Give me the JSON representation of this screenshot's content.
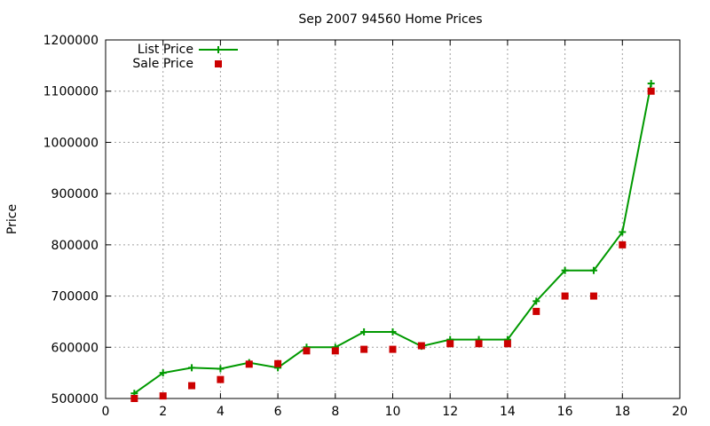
{
  "chart_data": {
    "type": "line",
    "title": "Sep 2007 94560 Home Prices",
    "xlabel": "",
    "ylabel": "Price",
    "xlim": [
      0,
      20
    ],
    "ylim": [
      500000,
      1200000
    ],
    "xticks": [
      0,
      2,
      4,
      6,
      8,
      10,
      12,
      14,
      16,
      18,
      20
    ],
    "yticks": [
      500000,
      600000,
      700000,
      800000,
      900000,
      1000000,
      1100000,
      1200000
    ],
    "grid": true,
    "legend_position": "top-left",
    "series": [
      {
        "name": "List Price",
        "style": "line-with-plus-markers",
        "color": "#009900",
        "x": [
          1,
          2,
          3,
          4,
          5,
          6,
          7,
          8,
          9,
          10,
          11,
          12,
          13,
          14,
          15,
          16,
          17,
          18,
          19
        ],
        "values": [
          510000,
          550000,
          560000,
          558000,
          570000,
          560000,
          600000,
          600000,
          630000,
          630000,
          602000,
          615000,
          615000,
          615000,
          690000,
          750000,
          750000,
          825000,
          1115000
        ]
      },
      {
        "name": "Sale Price",
        "style": "square-markers",
        "color": "#cc0000",
        "x": [
          1,
          2,
          3,
          4,
          5,
          6,
          7,
          8,
          9,
          10,
          11,
          12,
          13,
          14,
          15,
          16,
          17,
          18,
          19
        ],
        "values": [
          500000,
          505000,
          525000,
          537000,
          567000,
          568000,
          593000,
          593000,
          596000,
          596000,
          603000,
          607000,
          607000,
          607000,
          670000,
          700000,
          700000,
          800000,
          1100000
        ]
      }
    ]
  }
}
